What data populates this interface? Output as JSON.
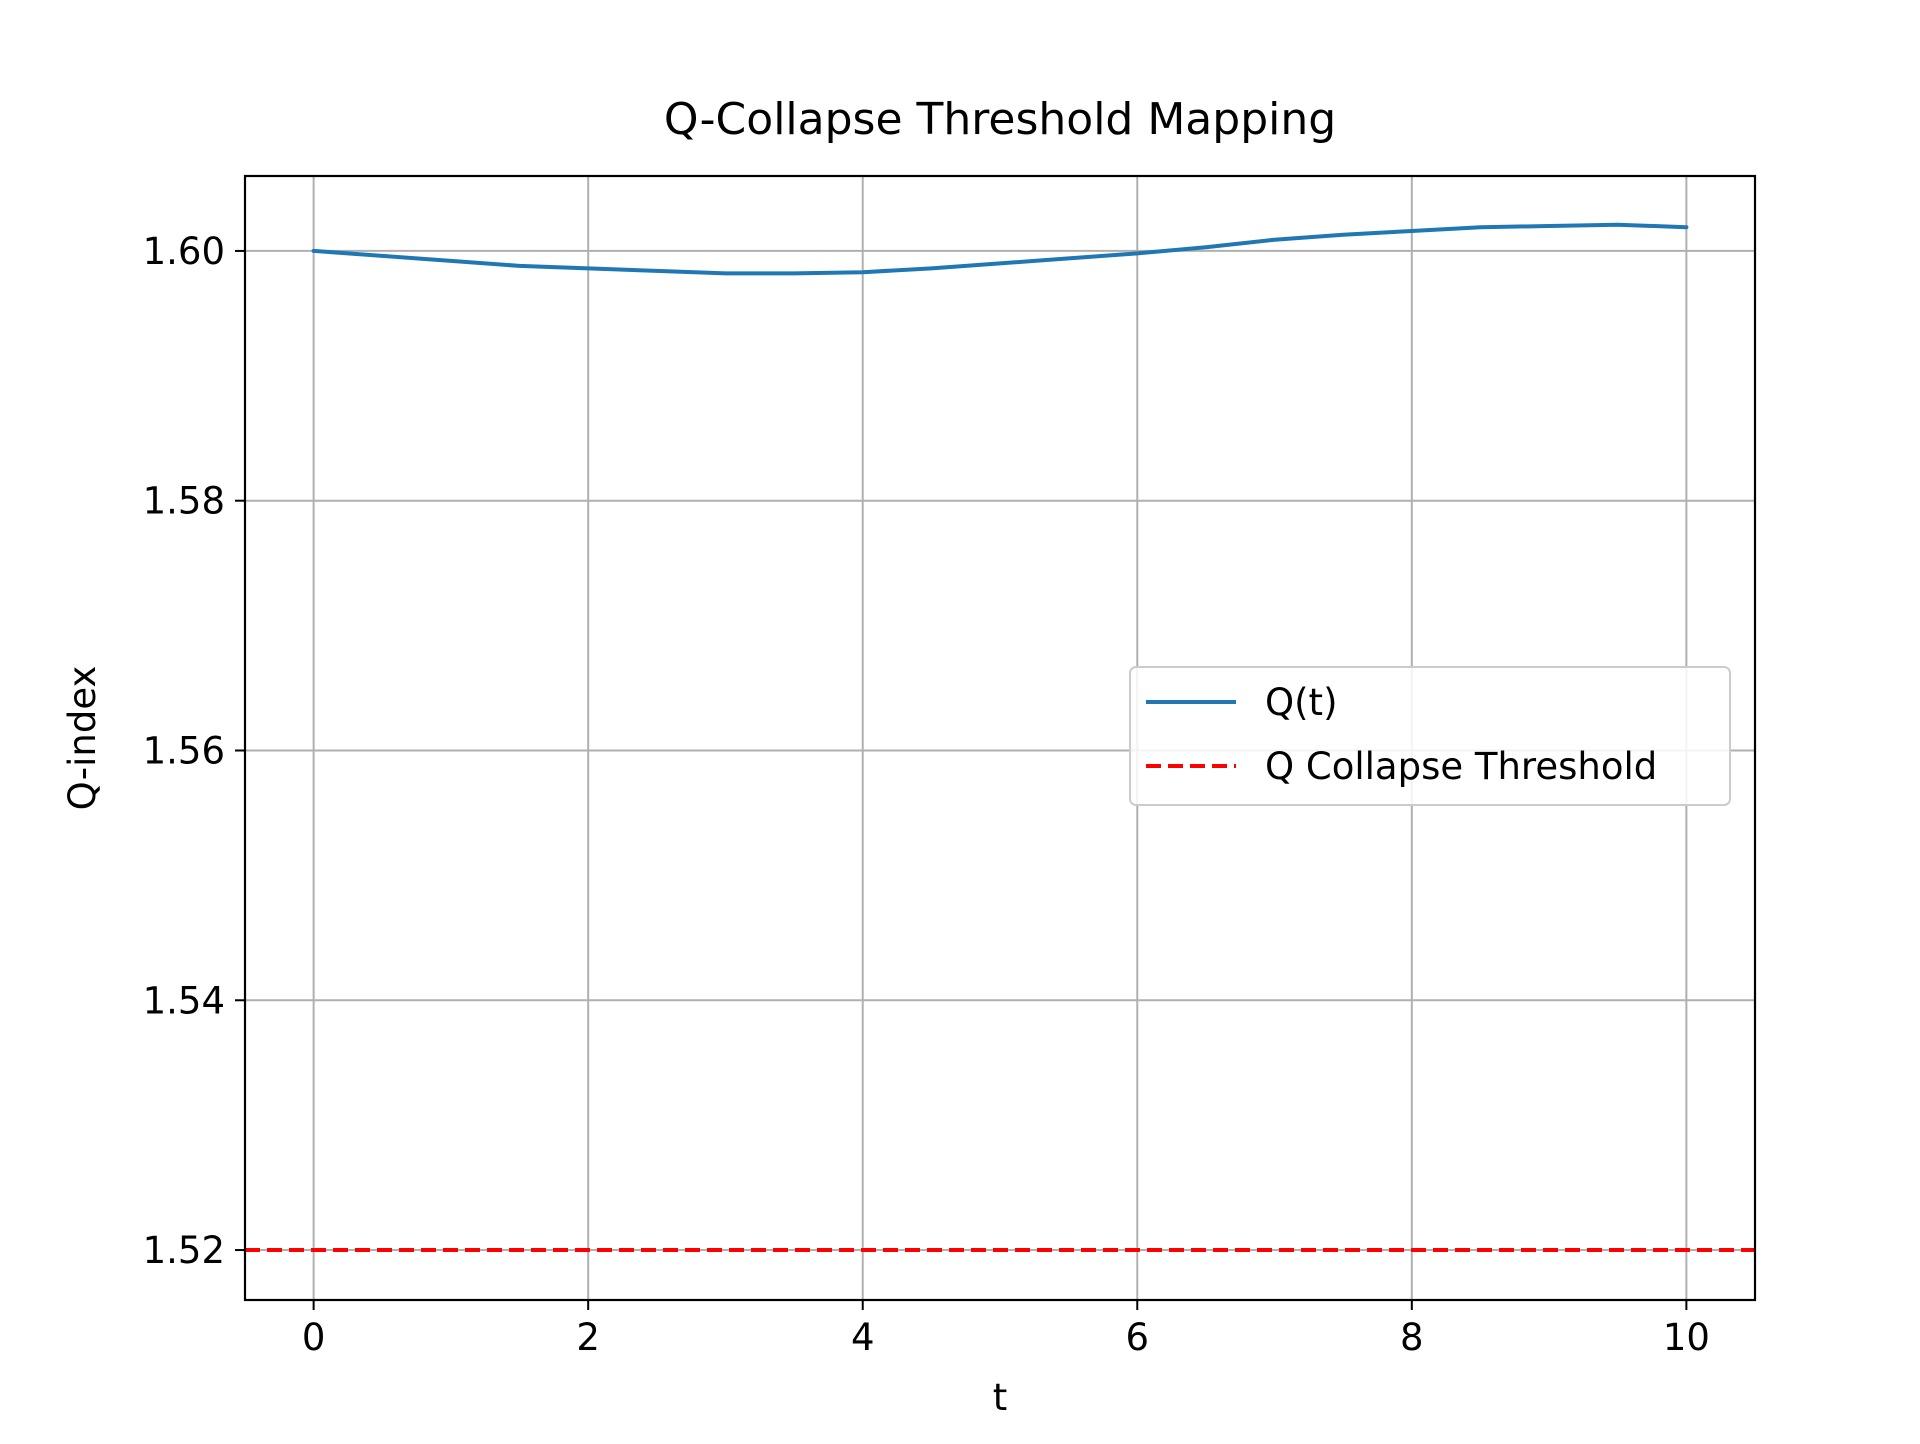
{
  "chart_data": {
    "type": "line",
    "title": "Q-Collapse Threshold Mapping",
    "xlabel": "t",
    "ylabel": "Q-index",
    "xlim": [
      -0.5,
      10.5
    ],
    "ylim": [
      1.516,
      1.606
    ],
    "xticks": [
      0,
      2,
      4,
      6,
      8,
      10
    ],
    "xtick_labels": [
      "0",
      "2",
      "4",
      "6",
      "8",
      "10"
    ],
    "yticks": [
      1.52,
      1.54,
      1.56,
      1.58,
      1.6
    ],
    "ytick_labels": [
      "1.52",
      "1.54",
      "1.56",
      "1.58",
      "1.60"
    ],
    "grid": true,
    "legend_position": "center-right",
    "series": [
      {
        "name": "Q(t)",
        "color": "#1f77b4",
        "style": "solid",
        "x": [
          0,
          0.5,
          1,
          1.5,
          2,
          2.5,
          3,
          3.5,
          4,
          4.5,
          5,
          5.5,
          6,
          6.5,
          7,
          7.5,
          8,
          8.5,
          9,
          9.5,
          10
        ],
        "y": [
          1.6,
          1.5996,
          1.5992,
          1.5988,
          1.5986,
          1.5984,
          1.5982,
          1.5982,
          1.5983,
          1.5986,
          1.599,
          1.5994,
          1.5998,
          1.6003,
          1.6009,
          1.6013,
          1.6016,
          1.6019,
          1.602,
          1.6021,
          1.6019
        ]
      },
      {
        "name": "Q Collapse Threshold",
        "color": "#ff0000",
        "style": "dashed",
        "x": [
          -0.5,
          10.5
        ],
        "y": [
          1.52,
          1.52
        ]
      }
    ]
  }
}
